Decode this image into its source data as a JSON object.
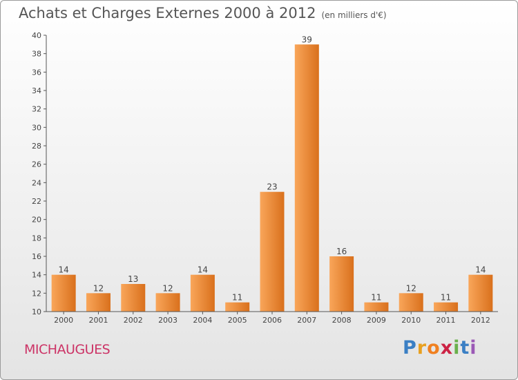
{
  "title": "Achats et Charges Externes 2000 à 2012",
  "unit": "(en milliers d'€)",
  "location": "MICHAUGUES",
  "logo": {
    "letters": [
      "P",
      "r",
      "o",
      "x",
      "i",
      "t",
      "i"
    ],
    "colors": [
      "#3a7fc4",
      "#e8a020",
      "#f08020",
      "#cc2244",
      "#6ab04c",
      "#3a7fc4",
      "#9b59b6"
    ]
  },
  "colors": {
    "bar_light": "#f9a65a",
    "bar_dark": "#d9701c",
    "axis": "#555555",
    "grid": "#bbbbbb"
  },
  "chart_data": {
    "type": "bar",
    "title": "Achats et Charges Externes 2000 à 2012",
    "ylabel": "en milliers d'€",
    "xlabel": "",
    "ylim": [
      10,
      40
    ],
    "yticks": [
      10,
      12,
      14,
      16,
      18,
      20,
      22,
      24,
      26,
      28,
      30,
      32,
      34,
      36,
      38,
      40
    ],
    "categories": [
      "2000",
      "2001",
      "2002",
      "2003",
      "2004",
      "2005",
      "2006",
      "2007",
      "2008",
      "2009",
      "2010",
      "2011",
      "2012"
    ],
    "values": [
      14,
      12,
      13,
      12,
      14,
      11,
      23,
      39,
      16,
      11,
      12,
      11,
      14
    ],
    "grid": false
  }
}
